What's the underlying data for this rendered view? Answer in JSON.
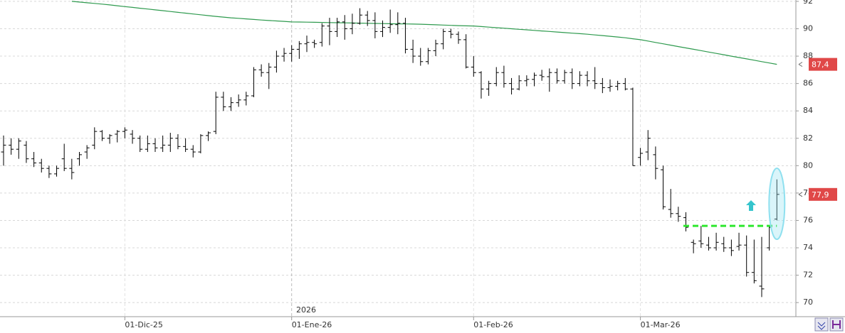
{
  "chart_data": {
    "type": "ohlc",
    "categories": [
      null,
      null,
      null,
      null,
      null,
      null,
      null,
      null,
      null,
      null,
      null,
      null,
      null,
      null,
      null,
      null,
      "01-Dic-25",
      null,
      null,
      null,
      null,
      null,
      null,
      null,
      null,
      null,
      null,
      null,
      null,
      null,
      null,
      null,
      null,
      null,
      null,
      null,
      null,
      null,
      "01-Ene-26",
      null,
      null,
      null,
      null,
      null,
      null,
      null,
      null,
      null,
      null,
      null,
      null,
      null,
      null,
      null,
      null,
      null,
      null,
      null,
      null,
      null,
      null,
      null,
      "01-Feb-26",
      null,
      null,
      null,
      null,
      null,
      null,
      null,
      null,
      null,
      null,
      null,
      null,
      null,
      null,
      null,
      null,
      null,
      null,
      null,
      null,
      null,
      "01-Mar-26",
      null,
      null,
      null,
      null,
      null,
      null,
      null,
      null,
      null,
      null,
      null,
      null,
      null,
      null,
      null,
      null,
      null,
      null
    ],
    "open": [
      81,
      81.5,
      81.2,
      81.5,
      80.5,
      80.2,
      79.8,
      79.4,
      80.5,
      79.8,
      80.5,
      81,
      81.5,
      82.5,
      82,
      82.3,
      82.5,
      82.3,
      82,
      81.2,
      81.6,
      81.3,
      81.5,
      82,
      81.4,
      81.2,
      81,
      82.2,
      82.5,
      85,
      84.3,
      84.6,
      84.8,
      85.1,
      87,
      86.8,
      87.2,
      88,
      88.2,
      88.5,
      88.9,
      89,
      89,
      90.2,
      89.8,
      90.5,
      90,
      90.4,
      91,
      90.6,
      89.8,
      90.1,
      90.3,
      90.4,
      88.5,
      88,
      87.6,
      88.4,
      88.9,
      89.8,
      89.6,
      89.2,
      87.2,
      86.8,
      85.6,
      86,
      86.8,
      86,
      85.6,
      86.2,
      86.3,
      86.6,
      86.5,
      86.8,
      86.2,
      86.8,
      86,
      86.6,
      86.2,
      86,
      85.7,
      85.8,
      86,
      85.6,
      80.6,
      81,
      80.8,
      79.7,
      76.8,
      76.5,
      76.2,
      74.4,
      74.5,
      74.2,
      74,
      74.3,
      74,
      74.1,
      74.2,
      72.2,
      71.2,
      74,
      76.1
    ],
    "high": [
      82.2,
      82,
      82,
      81.8,
      81,
      80.5,
      80,
      80,
      81.6,
      80.5,
      81,
      81.5,
      82.8,
      82.6,
      82.3,
      82.6,
      82.8,
      82.6,
      82.2,
      82.2,
      82,
      82.2,
      82.4,
      82.3,
      82,
      81.5,
      82.3,
      82.5,
      85.4,
      85.4,
      85,
      85.2,
      85.4,
      87.2,
      87.4,
      87.5,
      88.4,
      88.6,
      88.8,
      89.1,
      89.5,
      89.2,
      90.4,
      90.8,
      90.8,
      91,
      91.1,
      91.5,
      91.3,
      91.2,
      90.6,
      91.4,
      91.2,
      90.8,
      89.2,
      88.6,
      88.6,
      89.2,
      90,
      90,
      89.8,
      89.6,
      88,
      86.9,
      86.2,
      87.2,
      87.3,
      86.4,
      86.6,
      86.6,
      86.8,
      87,
      87.1,
      87.1,
      87,
      87.1,
      86.9,
      86.9,
      87.2,
      86.4,
      86.3,
      86.2,
      86.4,
      85.7,
      81.3,
      82.6,
      81.4,
      80,
      78.3,
      77,
      76.6,
      74.6,
      75.6,
      74.8,
      75.1,
      74.8,
      74.6,
      75.1,
      74.9,
      74.6,
      74.8,
      75.6,
      79
    ],
    "low": [
      80,
      80.8,
      80.5,
      80.2,
      79.9,
      79.5,
      79.1,
      79.2,
      79.6,
      79,
      80,
      80.5,
      81.2,
      81.8,
      81.6,
      81.7,
      82,
      81.6,
      81,
      81,
      81,
      81,
      81,
      81.2,
      81,
      80.6,
      80.9,
      81.8,
      82.3,
      84,
      84,
      84.3,
      84.4,
      85,
      86.5,
      85.6,
      86.8,
      87.6,
      87.6,
      87.8,
      88.3,
      88.6,
      88.7,
      88.8,
      89.4,
      89.2,
      89.6,
      90.3,
      90.2,
      89.3,
      89.4,
      89.7,
      89.6,
      88.2,
      87.5,
      87.3,
      87.4,
      88,
      88.5,
      89.3,
      88.9,
      87.1,
      86.5,
      84.9,
      85.1,
      85.8,
      85.7,
      85.2,
      85.5,
      85.8,
      85.8,
      86.2,
      85.4,
      86,
      86,
      85.6,
      85.8,
      85.8,
      85.6,
      85.3,
      85.4,
      85.5,
      85.5,
      80,
      80,
      80.4,
      79,
      76.8,
      76.2,
      75.9,
      75.2,
      73.6,
      74,
      73.8,
      73.8,
      73.7,
      73.4,
      73.8,
      71.9,
      71.4,
      70.4,
      73.8,
      76
    ],
    "close": [
      81.5,
      81.2,
      81.8,
      80.5,
      80.2,
      79.8,
      79.4,
      79.8,
      79.8,
      79.5,
      80.8,
      81.3,
      82.5,
      82,
      82.2,
      82.5,
      82.6,
      82,
      81.2,
      81.6,
      81.3,
      81.5,
      82,
      81.4,
      81.2,
      81,
      82.2,
      82.4,
      85,
      84.3,
      84.6,
      84.8,
      85.1,
      87,
      86.8,
      87.2,
      88,
      88.2,
      88.5,
      88.9,
      89,
      88.9,
      90.2,
      89.8,
      90.5,
      90,
      90.4,
      91,
      90.6,
      89.8,
      90.1,
      90.3,
      90.4,
      88.5,
      88,
      87.6,
      88.4,
      88.9,
      89.8,
      89.6,
      89.2,
      87.2,
      86.8,
      85.6,
      86,
      86.8,
      86,
      85.6,
      86.2,
      86.3,
      86.6,
      86.5,
      86.8,
      86.2,
      86.8,
      86,
      86.6,
      86.2,
      86,
      85.7,
      85.8,
      86,
      85.6,
      80,
      80.9,
      82,
      79.8,
      77,
      76.5,
      76.3,
      75.5,
      74.3,
      74.3,
      74,
      74.4,
      74,
      73.8,
      74.2,
      72.2,
      71.6,
      71,
      75.5,
      77.9
    ],
    "color": "#000000",
    "moving_average": {
      "color": "#2e9a4e",
      "values": [
        null,
        null,
        null,
        null,
        null,
        null,
        null,
        null,
        null,
        92.0,
        91.95,
        91.9,
        91.85,
        91.8,
        91.74,
        91.68,
        91.62,
        91.56,
        91.5,
        91.44,
        91.38,
        91.32,
        91.26,
        91.2,
        91.14,
        91.08,
        91.02,
        90.96,
        90.9,
        90.85,
        90.8,
        90.76,
        90.72,
        90.68,
        90.64,
        90.6,
        90.57,
        90.54,
        90.5,
        90.49,
        90.48,
        90.47,
        90.46,
        90.45,
        90.44,
        90.43,
        90.42,
        90.41,
        90.4,
        90.39,
        90.38,
        90.37,
        90.36,
        90.35,
        90.34,
        90.33,
        90.31,
        90.29,
        90.27,
        90.25,
        90.23,
        90.21,
        90.2,
        90.16,
        90.12,
        90.08,
        90.04,
        90.0,
        89.96,
        89.92,
        89.88,
        89.84,
        89.8,
        89.76,
        89.72,
        89.68,
        89.64,
        89.6,
        89.55,
        89.5,
        89.45,
        89.4,
        89.34,
        89.27,
        89.2,
        89.1,
        89.0,
        88.9,
        88.8,
        88.7,
        88.6,
        88.5,
        88.4,
        88.3,
        88.2,
        88.1,
        88.0,
        87.9,
        87.8,
        87.7,
        87.6,
        87.5,
        87.4
      ]
    },
    "hline": {
      "value": 75.6,
      "color": "#2ee82e"
    },
    "price_labels": [
      {
        "value": 87.4,
        "label": "87,4"
      },
      {
        "value": 77.9,
        "label": "77,9"
      }
    ],
    "price_label_color": "#e04848",
    "year_label": "2026",
    "ylim": [
      69.8,
      92.1
    ],
    "yticks": [
      70,
      72,
      74,
      76,
      78,
      80,
      82,
      84,
      86,
      88,
      90,
      92
    ],
    "grid": true
  }
}
